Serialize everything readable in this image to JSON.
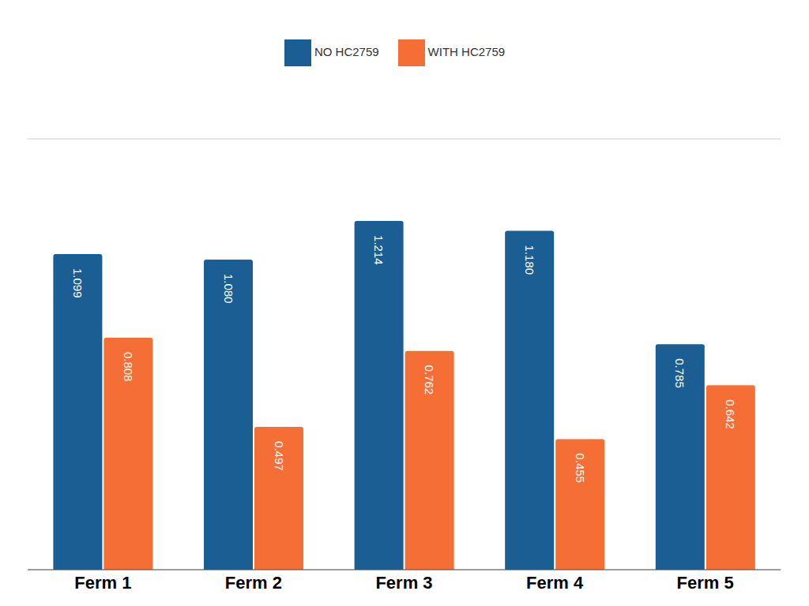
{
  "chart_data": {
    "type": "bar",
    "categories": [
      "Ferm 1",
      "Ferm 2",
      "Ferm 3",
      "Ferm 4",
      "Ferm 5"
    ],
    "series": [
      {
        "name": "NO HC2759",
        "color": "#1a5e94",
        "values": [
          1.099,
          1.08,
          1.214,
          1.18,
          0.785
        ],
        "value_labels": [
          "1.099",
          "1.080",
          "1.214",
          "1.180",
          "0.785"
        ]
      },
      {
        "name": "WITH HC2759",
        "color": "#f56e36",
        "values": [
          0.808,
          0.497,
          0.762,
          0.455,
          0.642
        ],
        "value_labels": [
          "0.808",
          "0.497",
          "0.762",
          "0.455",
          "0.642"
        ]
      }
    ],
    "ylim": [
      0,
      1.5
    ],
    "yticks": [
      0,
      0.5,
      1,
      1.5
    ],
    "grid": true,
    "legend": "top",
    "data_labels": true,
    "tick_labels": "x"
  }
}
